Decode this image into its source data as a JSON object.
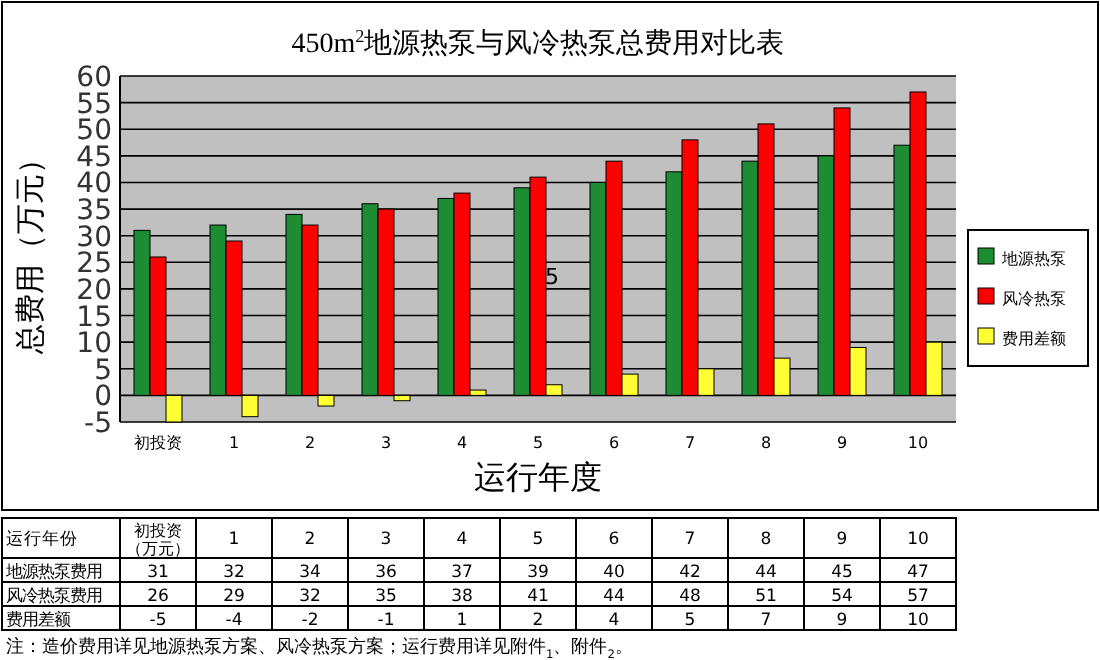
{
  "chart_data": {
    "type": "bar",
    "title": "450m$^{2}$地源热泵与风冷热泵总费用对比表",
    "xlabel": "运行年度",
    "ylabel": "总费用（万元）",
    "categories": [
      "初投资",
      "1",
      "2",
      "3",
      "4",
      "5",
      "6",
      "7",
      "8",
      "9",
      "10"
    ],
    "series": [
      {
        "name": "地源热泵",
        "color": "#1e8c32",
        "values": [
          31,
          32,
          34,
          36,
          37,
          39,
          40,
          42,
          44,
          45,
          47
        ]
      },
      {
        "name": "风冷热泵",
        "color": "#ff0000",
        "values": [
          26,
          29,
          32,
          35,
          38,
          41,
          44,
          48,
          51,
          54,
          57
        ]
      },
      {
        "name": "费用差额",
        "color": "#ffff33",
        "values": [
          -5,
          -4,
          -2,
          -1,
          1,
          2,
          4,
          5,
          7,
          9,
          10
        ]
      }
    ],
    "ylim": [
      -5,
      60
    ],
    "yticks": [
      -5,
      0,
      5,
      10,
      15,
      20,
      25,
      30,
      35,
      40,
      45,
      50,
      55,
      60
    ],
    "grid": "y",
    "legend": "right",
    "data_labels": true,
    "annotations": [
      "5",
      "运行年份",
      "初投资（万元）",
      "地源热泵费用",
      "风冷热泵费用",
      "费用差额",
      "注：造价费用详见地源热泵方案、风冷热泵方案；运行费用详见附件$_{1}$、附件$_{2}$。"
    ]
  }
}
